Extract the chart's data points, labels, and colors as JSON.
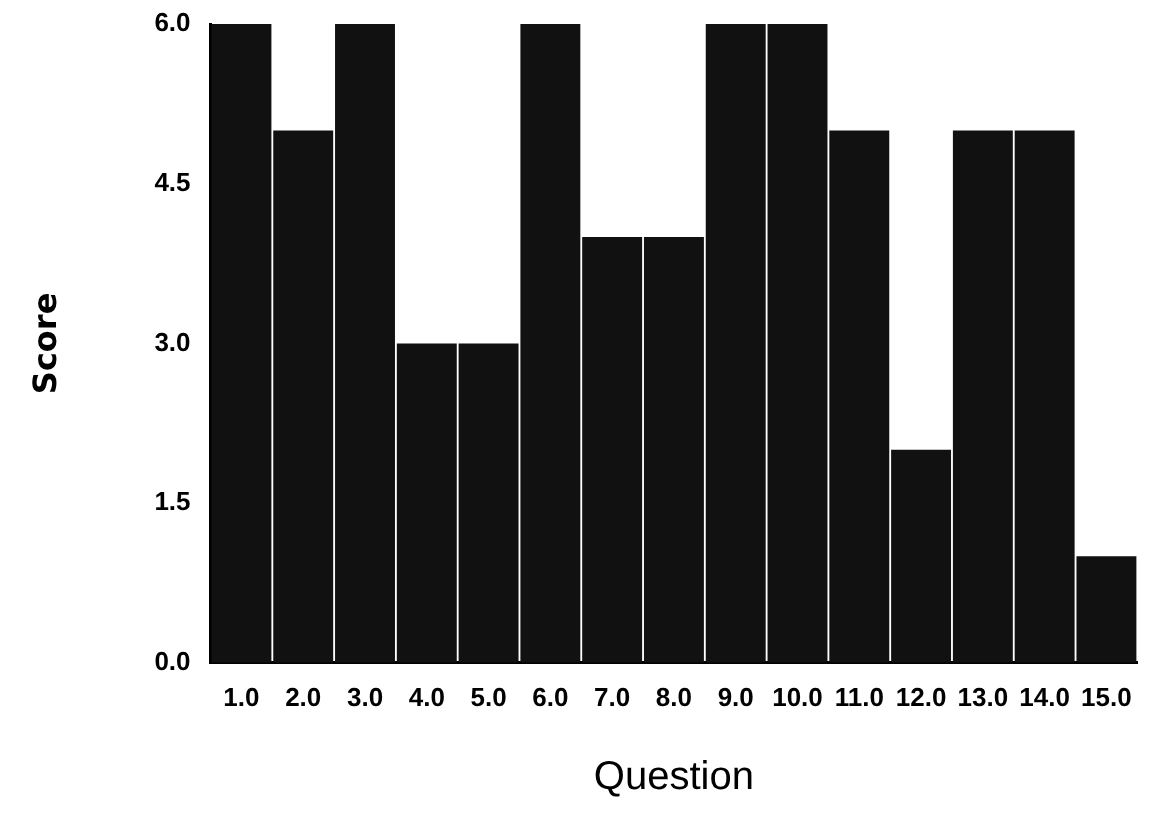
{
  "chart_data": {
    "type": "bar",
    "xlabel": "Question",
    "ylabel": "Score",
    "categories": [
      "1.0",
      "2.0",
      "3.0",
      "4.0",
      "5.0",
      "6.0",
      "7.0",
      "8.0",
      "9.0",
      "10.0",
      "11.0",
      "12.0",
      "13.0",
      "14.0",
      "15.0"
    ],
    "values": [
      6,
      5,
      6,
      3,
      3,
      6,
      4,
      4,
      6,
      6,
      5,
      2,
      5,
      5,
      1
    ],
    "color": "#111111",
    "ylim": [
      0,
      6
    ],
    "yticks": [
      {
        "value": 0,
        "label": "0.0"
      },
      {
        "value": 1.5,
        "label": "1.5"
      },
      {
        "value": 3,
        "label": "3.0"
      },
      {
        "value": 4.5,
        "label": "4.5"
      },
      {
        "value": 6,
        "label": "6.0"
      }
    ],
    "grid": false,
    "legend": false
  }
}
